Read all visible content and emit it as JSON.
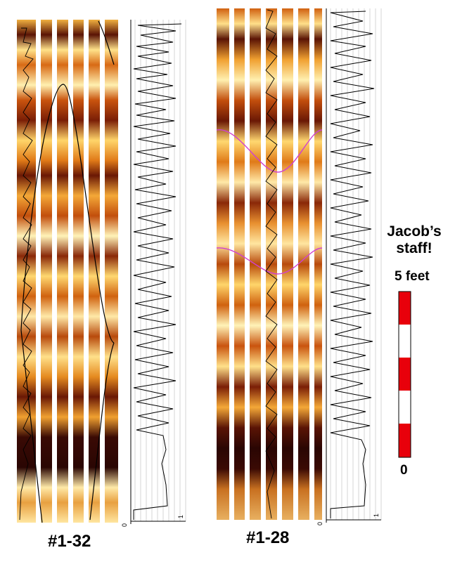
{
  "panels": [
    {
      "id": "left",
      "label": "#1-32",
      "scale_min": "0",
      "scale_max": "1"
    },
    {
      "id": "right",
      "label": "#1-28",
      "scale_min": "0",
      "scale_max": "1"
    }
  ],
  "staff": {
    "title_line1": "Jacob’s",
    "title_line2": "staff!",
    "top_label": "5 feet",
    "bottom_label": "0",
    "segments": [
      "red",
      "white",
      "red",
      "white",
      "red"
    ],
    "colors": {
      "red": "#e8000b",
      "white": "#ffffff"
    }
  },
  "colors": {
    "core_dark": "#4a0e05",
    "core_mid": "#c85a10",
    "core_light": "#ffe9a8",
    "trace": "#000000",
    "sine_left": "#000000",
    "sine_right": "#d040d0"
  }
}
